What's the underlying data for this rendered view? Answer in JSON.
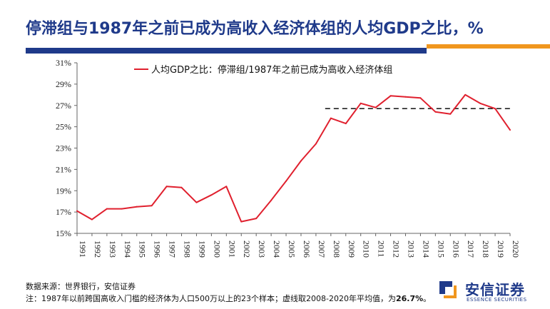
{
  "header": {
    "title": "停滞组与1987年之前已成为高收入经济体组的人均GDP之比，%"
  },
  "chart_data": {
    "type": "line",
    "title": "",
    "xlabel": "",
    "ylabel": "",
    "ylim": [
      15,
      31
    ],
    "yticks": [
      "15%",
      "17%",
      "19%",
      "21%",
      "23%",
      "25%",
      "27%",
      "29%",
      "31%"
    ],
    "grid": false,
    "legend_position": "top",
    "categories": [
      "1991",
      "1992",
      "1993",
      "1994",
      "1995",
      "1996",
      "1997",
      "1998",
      "1999",
      "2000",
      "2001",
      "2002",
      "2003",
      "2004",
      "2005",
      "2006",
      "2007",
      "2008",
      "2009",
      "2010",
      "2011",
      "2012",
      "2013",
      "2014",
      "2015",
      "2016",
      "2017",
      "2018",
      "2019",
      "2020"
    ],
    "series": [
      {
        "name": "人均GDP之比：停滞组/1987年之前已成为高收入经济体组",
        "color": "#e0202e",
        "values": [
          17.1,
          16.3,
          17.3,
          17.3,
          17.5,
          17.6,
          19.4,
          19.3,
          17.9,
          18.6,
          19.4,
          16.1,
          16.4,
          18.1,
          19.9,
          21.8,
          23.4,
          25.8,
          25.3,
          27.2,
          26.8,
          27.9,
          27.8,
          27.7,
          26.4,
          26.2,
          28.0,
          27.2,
          26.7,
          24.7
        ]
      }
    ],
    "reference_line": {
      "value": 26.7,
      "from": "2008",
      "to": "2020",
      "style": "dashed",
      "color": "#222222"
    }
  },
  "footer": {
    "source": "数据来源：世界银行，安信证券",
    "note_prefix": "注：1987年以前跨国高收入门槛的经济体为人口500万以上的23个样本；虚线取2008-2020年平均值，为",
    "note_value": "26.7%",
    "note_suffix": "。"
  },
  "logo": {
    "name_cn": "安信证券",
    "name_en": "ESSENCE SECURITIES"
  },
  "colors": {
    "title_blue": "#1f3a8a",
    "accent_orange": "#f0961e",
    "series_red": "#e0202e"
  }
}
